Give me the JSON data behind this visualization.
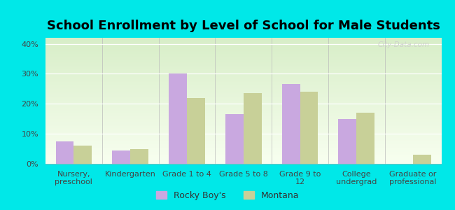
{
  "title": "School Enrollment by Level of School for Male Students",
  "categories": [
    "Nursery,\npreschool",
    "Kindergarten",
    "Grade 1 to 4",
    "Grade 5 to 8",
    "Grade 9 to\n12",
    "College\nundergrad",
    "Graduate or\nprofessional"
  ],
  "rocky_boys": [
    7.5,
    4.5,
    30.0,
    16.5,
    26.5,
    15.0,
    0.0
  ],
  "montana": [
    6.0,
    5.0,
    22.0,
    23.5,
    24.0,
    17.0,
    3.0
  ],
  "rocky_color": "#c9a8e0",
  "montana_color": "#c8d098",
  "background_color": "#00e8e8",
  "grad_color_top": "#d8eec8",
  "grad_color_bottom": "#f8fff0",
  "ylim": [
    0,
    42
  ],
  "yticks": [
    0,
    10,
    20,
    30,
    40
  ],
  "title_fontsize": 13,
  "tick_fontsize": 8,
  "legend_labels": [
    "Rocky Boy's",
    "Montana"
  ],
  "watermark": "City-Data.com"
}
